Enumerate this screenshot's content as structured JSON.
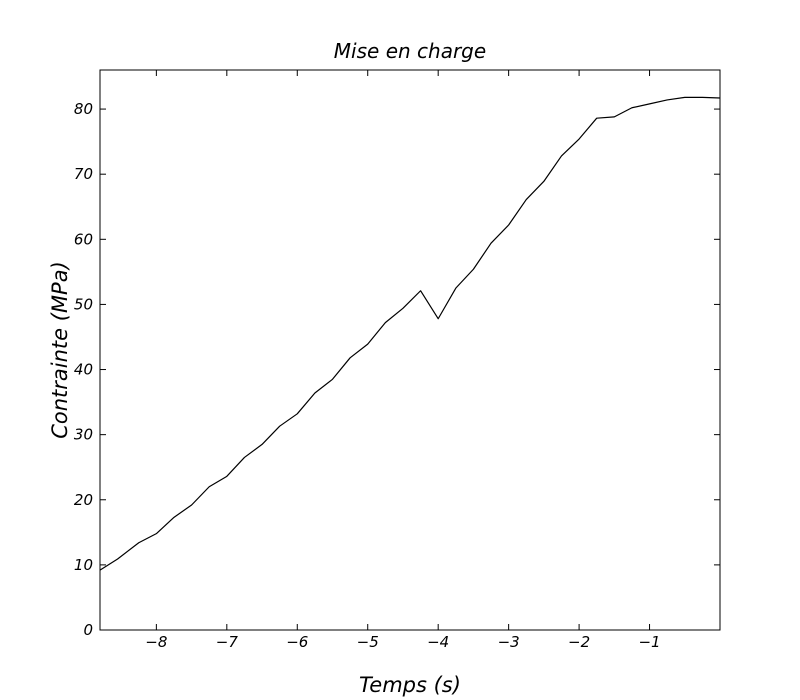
{
  "chart_data": {
    "type": "line",
    "title": "Mise en charge",
    "xlabel": "Temps (s)",
    "ylabel": "Contrainte (MPa)",
    "xlim": [
      -8.8,
      0.0
    ],
    "ylim": [
      0,
      86
    ],
    "x_ticks": [
      -8,
      -7,
      -6,
      -5,
      -4,
      -3,
      -2,
      -1
    ],
    "x_tick_labels": [
      "−8",
      "−7",
      "−6",
      "−5",
      "−4",
      "−3",
      "−2",
      "−1"
    ],
    "y_ticks": [
      0,
      10,
      20,
      30,
      40,
      50,
      60,
      70,
      80
    ],
    "y_tick_labels": [
      "0",
      "10",
      "20",
      "30",
      "40",
      "50",
      "60",
      "70",
      "80"
    ],
    "grid": false,
    "legend": false,
    "series": [
      {
        "color": "#000000",
        "x": [
          -8.8,
          -8.55,
          -8.25,
          -8.0,
          -7.75,
          -7.5,
          -7.25,
          -7.0,
          -6.75,
          -6.5,
          -6.25,
          -6.0,
          -5.75,
          -5.5,
          -5.25,
          -5.0,
          -4.75,
          -4.5,
          -4.25,
          -4.0,
          -3.75,
          -3.5,
          -3.25,
          -3.0,
          -2.75,
          -2.5,
          -2.25,
          -2.0,
          -1.75,
          -1.5,
          -1.25,
          -1.0,
          -0.75,
          -0.5,
          -0.25,
          0.0
        ],
        "y": [
          9.2,
          10.9,
          13.4,
          14.8,
          17.3,
          19.2,
          22.0,
          23.6,
          26.5,
          28.5,
          31.3,
          33.2,
          36.4,
          38.5,
          41.8,
          43.9,
          47.2,
          49.4,
          52.1,
          47.8,
          52.5,
          55.4,
          59.4,
          62.2,
          66.1,
          68.9,
          72.8,
          75.4,
          78.6,
          78.8,
          80.2,
          80.8,
          81.4,
          81.8,
          81.8,
          81.7
        ]
      }
    ]
  }
}
